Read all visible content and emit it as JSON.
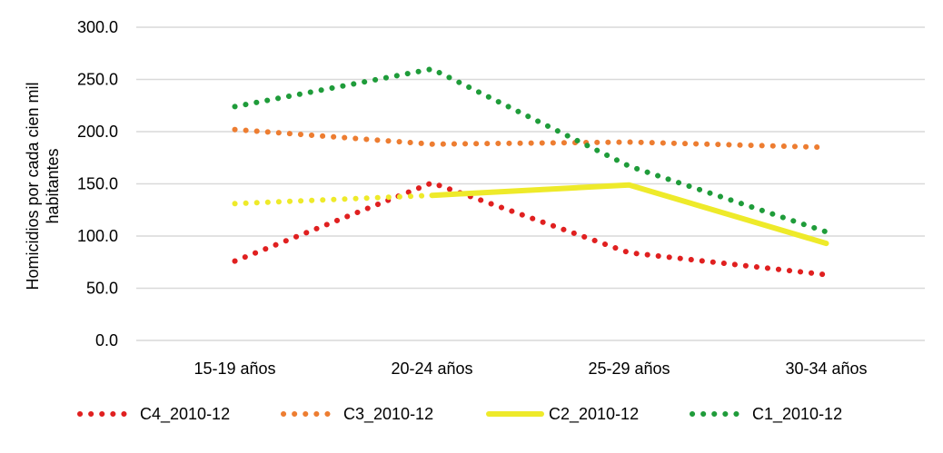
{
  "chart_data": {
    "type": "line",
    "categories": [
      "15-19 años",
      "20-24 años",
      "25-29 años",
      "30-34 años"
    ],
    "ylabel": "Homicidios por cada cien mil habitantes",
    "ylim": [
      0,
      300
    ],
    "yticks": [
      "0.0",
      "50.0",
      "100.0",
      "150.0",
      "200.0",
      "250.0",
      "300.0"
    ],
    "grid": "horizontal",
    "legend_position": "bottom",
    "series": [
      {
        "name": "C4_2010-12",
        "color": "#e02020",
        "style": "dotted",
        "segments": [
          {
            "style": "dotted",
            "values": [
              76,
              151,
              84,
              63
            ]
          }
        ]
      },
      {
        "name": "C3_2010-12",
        "color": "#ed7d31",
        "style": "dotted",
        "segments": [
          {
            "style": "dotted",
            "values": [
              202,
              188,
              190,
              185
            ]
          }
        ]
      },
      {
        "name": "C2_2010-12",
        "color": "#eeea2a",
        "style": "solid",
        "segments": [
          {
            "style": "dotted",
            "values": [
              131,
              139,
              null,
              null
            ]
          },
          {
            "style": "solid",
            "values": [
              null,
              139,
              149,
              93
            ]
          }
        ]
      },
      {
        "name": "C1_2010-12",
        "color": "#1f9c3a",
        "style": "dotted",
        "segments": [
          {
            "style": "dotted",
            "values": [
              224,
              260,
              167,
              104
            ]
          }
        ]
      }
    ]
  }
}
